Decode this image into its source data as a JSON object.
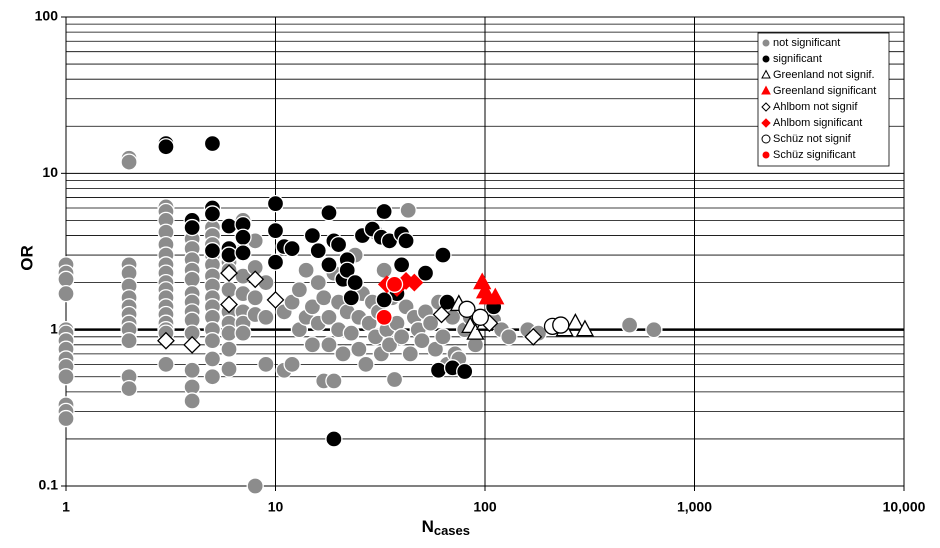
{
  "chart_data": {
    "type": "scatter",
    "xlabel": "N",
    "xlabel_sub": "cases",
    "ylabel": "OR",
    "xscale": "log",
    "yscale": "log",
    "xlim": [
      1,
      10000
    ],
    "ylim": [
      0.1,
      100
    ],
    "xticks": [
      1,
      10,
      100,
      {
        "value": 1000,
        "label": "1,000"
      },
      {
        "value": 10000,
        "label": "10,000"
      }
    ],
    "yticks": [
      0.1,
      1,
      10,
      100
    ],
    "y_minor_grid": [
      0.2,
      0.3,
      0.4,
      0.5,
      0.6,
      0.7,
      0.8,
      0.9,
      2,
      3,
      4,
      5,
      6,
      7,
      8,
      9,
      20,
      30,
      40,
      50,
      60,
      70,
      80,
      90
    ],
    "reference_line": 1,
    "grid": true,
    "legend": "upper right",
    "series": [
      {
        "name": "not significant",
        "color": "#8c8c8c",
        "marker": "circle",
        "edge": "#ffffff",
        "x": [
          1,
          1,
          1,
          1,
          1,
          1,
          1,
          1,
          1,
          1,
          1,
          1,
          1,
          1,
          2,
          2,
          2,
          2,
          2,
          2,
          2,
          2,
          2,
          2,
          2,
          2,
          2,
          3,
          3,
          3,
          3,
          3,
          3,
          3,
          3,
          3,
          3,
          3,
          3,
          3,
          3,
          3,
          3,
          3,
          4,
          4,
          4,
          4,
          4,
          4,
          4,
          4,
          4,
          4,
          4,
          4,
          4,
          5,
          5,
          5,
          5,
          5,
          5,
          5,
          5,
          5,
          5,
          5,
          5,
          5,
          5,
          6,
          6,
          6,
          6,
          6,
          6,
          6,
          6,
          7,
          7,
          7,
          7,
          7,
          7,
          7,
          7,
          8,
          8,
          8,
          8,
          8,
          9,
          9,
          9,
          11,
          11,
          12,
          12,
          13,
          13,
          14,
          14,
          15,
          15,
          16,
          16,
          17,
          17,
          18,
          18,
          19,
          19,
          20,
          20,
          21,
          22,
          23,
          24,
          25,
          25,
          26,
          27,
          28,
          29,
          30,
          30,
          31,
          32,
          33,
          34,
          35,
          36,
          37,
          38,
          40,
          42,
          43,
          44,
          46,
          48,
          50,
          52,
          55,
          58,
          60,
          63,
          66,
          70,
          72,
          75,
          80,
          85,
          90,
          110,
          120,
          130,
          160,
          180,
          490,
          640
        ],
        "values": [
          2.6,
          2.3,
          2.1,
          1.7,
          1.0,
          0.95,
          0.85,
          0.75,
          0.65,
          0.58,
          0.5,
          0.33,
          0.3,
          0.27,
          12.5,
          11.8,
          2.6,
          2.3,
          1.9,
          1.6,
          1.4,
          1.25,
          1.1,
          1.0,
          0.85,
          0.5,
          0.42,
          6.1,
          5.7,
          5.0,
          4.2,
          3.5,
          3.0,
          2.6,
          2.3,
          2.0,
          1.8,
          1.6,
          1.4,
          1.25,
          1.1,
          1.0,
          0.95,
          0.6,
          3.8,
          3.3,
          2.8,
          2.4,
          2.1,
          1.7,
          1.5,
          1.3,
          1.15,
          0.95,
          0.55,
          0.43,
          0.35,
          4.5,
          4.0,
          3.5,
          3.0,
          2.6,
          2.2,
          1.9,
          1.6,
          1.4,
          1.2,
          1.0,
          0.85,
          0.65,
          0.5,
          2.7,
          2.4,
          1.8,
          1.3,
          1.1,
          0.95,
          0.75,
          0.56,
          5.0,
          4.6,
          3.2,
          2.2,
          1.7,
          1.3,
          1.1,
          0.95,
          3.7,
          2.5,
          1.6,
          1.25,
          0.1,
          2.0,
          1.2,
          0.6,
          1.3,
          0.55,
          0.6,
          1.5,
          1.0,
          1.8,
          2.4,
          1.2,
          0.8,
          1.4,
          1.1,
          2.0,
          0.47,
          1.6,
          1.2,
          0.8,
          0.47,
          2.3,
          1.0,
          1.5,
          0.7,
          1.3,
          0.95,
          3.0,
          1.2,
          0.75,
          1.7,
          0.6,
          1.1,
          1.5,
          0.9,
          4.2,
          1.3,
          0.7,
          2.4,
          1.0,
          0.8,
          1.6,
          0.48,
          1.1,
          0.9,
          1.4,
          5.8,
          0.7,
          1.2,
          1.0,
          0.85,
          1.3,
          1.1,
          0.75,
          1.5,
          0.9,
          0.6,
          1.2,
          0.7,
          0.65,
          1.0,
          1.2,
          0.8,
          1.15,
          1.0,
          0.9,
          1.0,
          0.95,
          1.07,
          1.0
        ]
      },
      {
        "name": "significant",
        "color": "#000000",
        "marker": "circle",
        "edge": "#ffffff",
        "x": [
          3,
          3,
          5,
          4,
          4,
          5,
          5,
          5,
          6,
          6,
          6,
          7,
          7,
          7,
          10,
          10,
          10,
          11,
          12,
          15,
          16,
          18,
          18,
          19,
          20,
          21,
          22,
          22,
          23,
          24,
          26,
          29,
          32,
          33,
          35,
          38,
          40,
          40,
          42,
          52,
          63,
          66,
          60,
          70,
          80,
          110,
          19,
          33
        ],
        "values": [
          15.5,
          14.8,
          15.5,
          5.0,
          4.5,
          6.0,
          5.5,
          3.2,
          4.6,
          3.3,
          3.0,
          4.7,
          3.9,
          3.1,
          6.4,
          4.3,
          2.7,
          3.4,
          3.3,
          4.0,
          3.2,
          5.6,
          2.6,
          3.7,
          3.5,
          2.1,
          2.8,
          2.4,
          1.6,
          2.0,
          4.0,
          4.4,
          3.9,
          5.7,
          3.7,
          1.7,
          4.1,
          2.6,
          3.7,
          2.3,
          3.0,
          1.5,
          0.55,
          0.57,
          0.54,
          1.4,
          0.2,
          1.55
        ]
      },
      {
        "name": "Greenland not signif.",
        "color": "#ffffff",
        "marker": "triangle",
        "edge": "#000000",
        "x": [
          75,
          85,
          90,
          100,
          270,
          300,
          240
        ],
        "values": [
          1.45,
          1.05,
          0.95,
          1.1,
          1.1,
          1.0,
          1.0
        ]
      },
      {
        "name": "Greenland significant",
        "color": "#ff0000",
        "marker": "triangle",
        "edge": "#ff0000",
        "x": [
          97,
          100,
          103,
          112
        ],
        "values": [
          2.0,
          1.75,
          1.6,
          1.6
        ]
      },
      {
        "name": "Ahlbom not signif",
        "color": "#ffffff",
        "marker": "diamond",
        "edge": "#000000",
        "x": [
          3,
          4,
          6,
          6,
          8,
          10,
          62,
          105,
          170
        ],
        "values": [
          0.85,
          0.8,
          2.3,
          1.45,
          2.1,
          1.55,
          1.25,
          1.1,
          0.9
        ]
      },
      {
        "name": "Ahlbom significant",
        "color": "#ff0000",
        "marker": "diamond",
        "edge": "#ff0000",
        "x": [
          34,
          38,
          42,
          46
        ],
        "values": [
          1.95,
          1.85,
          2.05,
          2.0
        ]
      },
      {
        "name": "Schüz not signif",
        "color": "#ffffff",
        "marker": "circle",
        "edge": "#000000",
        "x": [
          82,
          95,
          210,
          230
        ],
        "values": [
          1.35,
          1.2,
          1.05,
          1.07
        ]
      },
      {
        "name": "Schüz significant",
        "color": "#ff0000",
        "marker": "circle",
        "edge": "#ffffff",
        "x": [
          33,
          37
        ],
        "values": [
          1.2,
          1.95
        ]
      }
    ]
  }
}
